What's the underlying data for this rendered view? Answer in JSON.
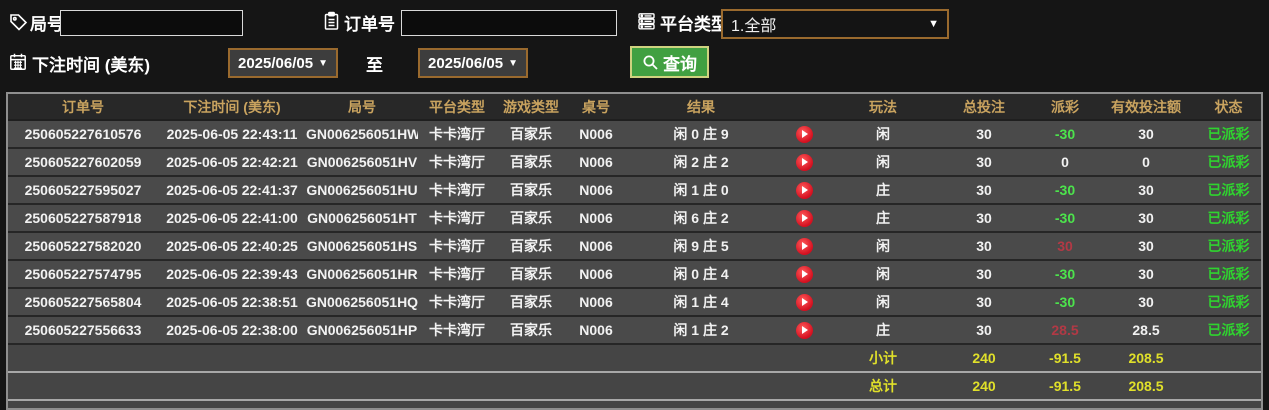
{
  "filters": {
    "round_label": "局号",
    "round_value": "",
    "order_label": "订单号",
    "order_value": "",
    "platform_label": "平台类型",
    "platform_value": "1.全部",
    "bet_time_label": "下注时间 (美东)",
    "date_from": "2025/06/05",
    "to_label": "至",
    "date_to": "2025/06/05",
    "search_label": "查询"
  },
  "table": {
    "columns": [
      "订单号",
      "下注时间 (美东)",
      "局号",
      "平台类型",
      "游戏类型",
      "桌号",
      "结果",
      "",
      "玩法",
      "总投注",
      "派彩",
      "有效投注额",
      "状态"
    ],
    "rows": [
      {
        "order_no": "250605227610576",
        "bet_time": "2025-06-05 22:43:11",
        "round_no": "GN006256051HW",
        "platform": "卡卡湾厅",
        "game": "百家乐",
        "table_no": "N006",
        "result": "闲 0 庄 9",
        "bet": "闲",
        "total": "30",
        "payout": "-30",
        "payout_color": "green",
        "valid": "30",
        "status": "已派彩"
      },
      {
        "order_no": "250605227602059",
        "bet_time": "2025-06-05 22:42:21",
        "round_no": "GN006256051HV",
        "platform": "卡卡湾厅",
        "game": "百家乐",
        "table_no": "N006",
        "result": "闲 2 庄 2",
        "bet": "闲",
        "total": "30",
        "payout": "0",
        "payout_color": "white",
        "valid": "0",
        "status": "已派彩"
      },
      {
        "order_no": "250605227595027",
        "bet_time": "2025-06-05 22:41:37",
        "round_no": "GN006256051HU",
        "platform": "卡卡湾厅",
        "game": "百家乐",
        "table_no": "N006",
        "result": "闲 1 庄 0",
        "bet": "庄",
        "total": "30",
        "payout": "-30",
        "payout_color": "green",
        "valid": "30",
        "status": "已派彩"
      },
      {
        "order_no": "250605227587918",
        "bet_time": "2025-06-05 22:41:00",
        "round_no": "GN006256051HT",
        "platform": "卡卡湾厅",
        "game": "百家乐",
        "table_no": "N006",
        "result": "闲 6 庄 2",
        "bet": "庄",
        "total": "30",
        "payout": "-30",
        "payout_color": "green",
        "valid": "30",
        "status": "已派彩"
      },
      {
        "order_no": "250605227582020",
        "bet_time": "2025-06-05 22:40:25",
        "round_no": "GN006256051HS",
        "platform": "卡卡湾厅",
        "game": "百家乐",
        "table_no": "N006",
        "result": "闲 9 庄 5",
        "bet": "闲",
        "total": "30",
        "payout": "30",
        "payout_color": "red",
        "valid": "30",
        "status": "已派彩"
      },
      {
        "order_no": "250605227574795",
        "bet_time": "2025-06-05 22:39:43",
        "round_no": "GN006256051HR",
        "platform": "卡卡湾厅",
        "game": "百家乐",
        "table_no": "N006",
        "result": "闲 0 庄 4",
        "bet": "闲",
        "total": "30",
        "payout": "-30",
        "payout_color": "green",
        "valid": "30",
        "status": "已派彩"
      },
      {
        "order_no": "250605227565804",
        "bet_time": "2025-06-05 22:38:51",
        "round_no": "GN006256051HQ",
        "platform": "卡卡湾厅",
        "game": "百家乐",
        "table_no": "N006",
        "result": "闲 1 庄 4",
        "bet": "闲",
        "total": "30",
        "payout": "-30",
        "payout_color": "green",
        "valid": "30",
        "status": "已派彩"
      },
      {
        "order_no": "250605227556633",
        "bet_time": "2025-06-05 22:38:00",
        "round_no": "GN006256051HP",
        "platform": "卡卡湾厅",
        "game": "百家乐",
        "table_no": "N006",
        "result": "闲 1 庄 2",
        "bet": "庄",
        "total": "30",
        "payout": "28.5",
        "payout_color": "red",
        "valid": "28.5",
        "status": "已派彩"
      }
    ],
    "subtotal": {
      "label": "小计",
      "total": "240",
      "payout": "-91.5",
      "valid": "208.5"
    },
    "total": {
      "label": "总计",
      "total": "240",
      "payout": "-91.5",
      "valid": "208.5"
    }
  },
  "colors": {
    "header_gold": "#c9a35f",
    "row_bg": "#4a4a4a",
    "negative_green": "#4ce44c",
    "positive_red": "#b23945",
    "status_green": "#2fd32f",
    "summary_yellow": "#e0e02a",
    "accent_border_orange": "#9a6a2e",
    "search_green": "#41a041"
  }
}
